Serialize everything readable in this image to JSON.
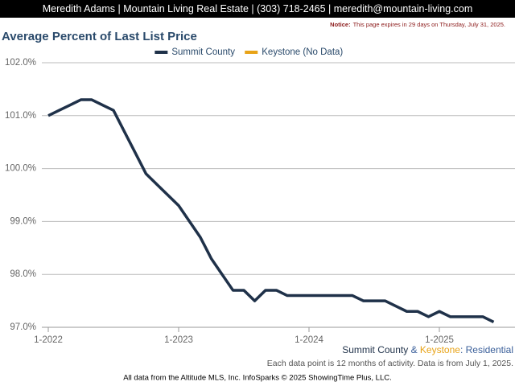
{
  "header": {
    "text": "Meredith Adams | Mountain Living Real Estate | (303) 718-2465 | meredith@mountain-living.com"
  },
  "notice": {
    "label": "Notice:",
    "text": "This page expires in 29 days on Thursday, July 31, 2025."
  },
  "chart_data": {
    "type": "line",
    "title": "Average Percent of Last List Price",
    "categories": [
      "1-2022",
      null,
      null,
      null,
      null,
      null,
      null,
      null,
      null,
      null,
      null,
      null,
      "1-2023",
      null,
      null,
      null,
      null,
      null,
      null,
      null,
      null,
      null,
      null,
      null,
      "1-2024",
      null,
      null,
      null,
      null,
      null,
      null,
      null,
      null,
      null,
      null,
      null,
      "1-2025",
      null,
      null,
      null,
      null,
      null
    ],
    "series": [
      {
        "name": "Summit County",
        "color": "#1f3149",
        "values": [
          101.0,
          101.1,
          101.2,
          101.3,
          101.3,
          101.2,
          101.1,
          100.7,
          100.3,
          99.9,
          99.7,
          99.5,
          99.3,
          99.0,
          98.7,
          98.3,
          98.0,
          97.7,
          97.7,
          97.5,
          97.7,
          97.7,
          97.6,
          97.6,
          97.6,
          97.6,
          97.6,
          97.6,
          97.6,
          97.5,
          97.5,
          97.5,
          97.4,
          97.3,
          97.3,
          97.2,
          97.3,
          97.2,
          97.2,
          97.2,
          97.2,
          97.1
        ]
      },
      {
        "name": "Keystone (No Data)",
        "color": "#e8a317",
        "values": [
          null,
          null,
          null,
          null,
          null,
          null,
          null,
          null,
          null,
          null,
          null,
          null,
          null,
          null,
          null,
          null,
          null,
          null,
          null,
          null,
          null,
          null,
          null,
          null,
          null,
          null,
          null,
          null,
          null,
          null,
          null,
          null,
          null,
          null,
          null,
          null,
          null,
          null,
          null,
          null,
          null,
          null
        ]
      }
    ],
    "ylim": [
      97,
      102
    ],
    "yticks": [
      {
        "value": 97,
        "label": "97.0%"
      },
      {
        "value": 98,
        "label": "98.0%"
      },
      {
        "value": 99,
        "label": "99.0%"
      },
      {
        "value": 100,
        "label": "100.0%"
      },
      {
        "value": 101,
        "label": "101.0%"
      },
      {
        "value": 102,
        "label": "102.0%"
      }
    ],
    "grid": true,
    "legend": "top"
  },
  "footer": {
    "areas": [
      {
        "text": "Summit County",
        "color": "#1f3149"
      },
      {
        "text": " & ",
        "color": "#3a5f9a"
      },
      {
        "text": "Keystone",
        "color": "#e8a317"
      },
      {
        "text": ": Residential",
        "color": "#3a5f9a"
      }
    ],
    "note": "Each data point is 12 months of activity. Data is from July 1, 2025.",
    "source": "All data from the Altitude MLS, Inc. InfoSparks © 2025 ShowingTime Plus, LLC."
  }
}
